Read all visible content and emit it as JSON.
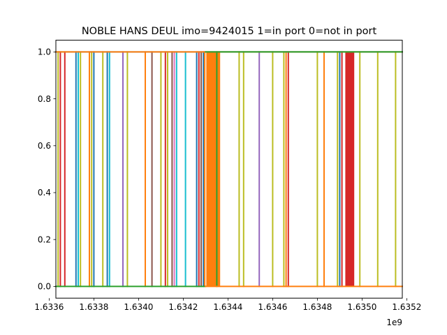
{
  "chart_data": {
    "type": "line",
    "title": "NOBLE HANS DEUL imo=9424015 1=in port 0=not in port",
    "xlabel": "",
    "ylabel": "",
    "x_offset_label": "1e9",
    "x_scale": 1000000000,
    "xlim": [
      1.63363,
      1.63518
    ],
    "ylim": [
      -0.05,
      1.05
    ],
    "x_ticks": [
      1.6336,
      1.6338,
      1.634,
      1.6342,
      1.6344,
      1.6346,
      1.6348,
      1.635,
      1.6352
    ],
    "x_tick_labels": [
      "1.6336",
      "1.6338",
      "1.6340",
      "1.6342",
      "1.6344",
      "1.6346",
      "1.6348",
      "1.6350",
      "1.6352"
    ],
    "y_ticks": [
      0.0,
      0.2,
      0.4,
      0.6,
      0.8,
      1.0
    ],
    "y_tick_labels": [
      "0.0",
      "0.2",
      "0.4",
      "0.6",
      "0.8",
      "1.0"
    ],
    "grid": false,
    "legend": "none",
    "colors": {
      "blue": "#1f77b4",
      "orange": "#ff7f0e",
      "green": "#2ca02c",
      "red": "#d62728",
      "purple": "#9467bd",
      "brown": "#8c564b",
      "pink": "#e377c2",
      "gray": "#7f7f7f",
      "olive": "#bcbd22",
      "cyan": "#17becf"
    },
    "series": [
      {
        "color": "olive",
        "x": [
          1.63364,
          1.63364
        ],
        "y": [
          0,
          1
        ]
      },
      {
        "color": "red",
        "x": [
          1.63365,
          1.63365
        ],
        "y": [
          0,
          1
        ]
      },
      {
        "color": "red",
        "x": [
          1.63367,
          1.63367
        ],
        "y": [
          0,
          1
        ]
      },
      {
        "color": "blue",
        "x": [
          1.63372,
          1.63372
        ],
        "y": [
          0,
          1
        ]
      },
      {
        "color": "cyan",
        "x": [
          1.63373,
          1.63373
        ],
        "y": [
          0,
          1
        ]
      },
      {
        "color": "olive",
        "x": [
          1.63374,
          1.63374
        ],
        "y": [
          0,
          1
        ]
      },
      {
        "color": "orange",
        "x": [
          1.63378,
          1.63378
        ],
        "y": [
          0,
          1
        ]
      },
      {
        "color": "olive",
        "x": [
          1.63379,
          1.63379
        ],
        "y": [
          0,
          1
        ]
      },
      {
        "color": "blue",
        "x": [
          1.6338,
          1.6338
        ],
        "y": [
          0,
          1
        ]
      },
      {
        "color": "olive",
        "x": [
          1.63384,
          1.63384
        ],
        "y": [
          0,
          1
        ]
      },
      {
        "color": "blue",
        "x": [
          1.63386,
          1.63386
        ],
        "y": [
          0,
          1
        ]
      },
      {
        "color": "cyan",
        "x": [
          1.63387,
          1.63387
        ],
        "y": [
          0,
          1
        ]
      },
      {
        "color": "purple",
        "x": [
          1.63393,
          1.63393
        ],
        "y": [
          0,
          1
        ]
      },
      {
        "color": "olive",
        "x": [
          1.63395,
          1.63395
        ],
        "y": [
          0,
          1
        ]
      },
      {
        "color": "orange",
        "x": [
          1.63403,
          1.63403
        ],
        "y": [
          0,
          1
        ]
      },
      {
        "color": "brown",
        "x": [
          1.63406,
          1.63406
        ],
        "y": [
          0,
          1
        ]
      },
      {
        "color": "olive",
        "x": [
          1.6341,
          1.6341
        ],
        "y": [
          0,
          1
        ]
      },
      {
        "color": "red",
        "x": [
          1.63412,
          1.63412
        ],
        "y": [
          0,
          1
        ]
      },
      {
        "color": "olive",
        "x": [
          1.63413,
          1.63413
        ],
        "y": [
          0,
          1
        ]
      },
      {
        "color": "brown",
        "x": [
          1.63415,
          1.63415
        ],
        "y": [
          0,
          1
        ]
      },
      {
        "color": "pink",
        "x": [
          1.63416,
          1.63416
        ],
        "y": [
          0,
          1
        ]
      },
      {
        "color": "cyan",
        "x": [
          1.63417,
          1.63417
        ],
        "y": [
          0,
          1
        ]
      },
      {
        "color": "cyan",
        "x": [
          1.63421,
          1.63421
        ],
        "y": [
          0,
          1
        ]
      },
      {
        "color": "blue",
        "x": [
          1.63426,
          1.63426
        ],
        "y": [
          0,
          1
        ]
      },
      {
        "color": "red",
        "x": [
          1.63427,
          1.63427
        ],
        "y": [
          0,
          1
        ]
      },
      {
        "color": "brown",
        "x": [
          1.63428,
          1.63428
        ],
        "y": [
          0,
          1
        ]
      },
      {
        "color": "blue",
        "x": [
          1.63429,
          1.63429
        ],
        "y": [
          0,
          1
        ]
      },
      {
        "color": "orange",
        "x": [
          1.634296,
          1.634296
        ],
        "y": [
          0,
          1
        ]
      },
      {
        "color": "green",
        "x": [
          1.63435,
          1.63435
        ],
        "y": [
          0,
          1
        ]
      },
      {
        "color": "olive",
        "x": [
          1.63445,
          1.63445
        ],
        "y": [
          0,
          1
        ]
      },
      {
        "color": "olive",
        "x": [
          1.63447,
          1.63447
        ],
        "y": [
          0,
          1
        ]
      },
      {
        "color": "purple",
        "x": [
          1.63454,
          1.63454
        ],
        "y": [
          0,
          1
        ]
      },
      {
        "color": "olive",
        "x": [
          1.6346,
          1.6346
        ],
        "y": [
          0,
          1
        ]
      },
      {
        "color": "olive",
        "x": [
          1.63465,
          1.63465
        ],
        "y": [
          0,
          1
        ]
      },
      {
        "color": "orange",
        "x": [
          1.63466,
          1.63466
        ],
        "y": [
          0,
          1
        ]
      },
      {
        "color": "red",
        "x": [
          1.63467,
          1.63467
        ],
        "y": [
          0,
          1
        ]
      },
      {
        "color": "olive",
        "x": [
          1.6348,
          1.6348
        ],
        "y": [
          0,
          1
        ]
      },
      {
        "color": "orange",
        "x": [
          1.63483,
          1.63483
        ],
        "y": [
          0,
          1
        ]
      },
      {
        "color": "olive",
        "x": [
          1.63489,
          1.63489
        ],
        "y": [
          0,
          1
        ]
      },
      {
        "color": "blue",
        "x": [
          1.6349,
          1.6349
        ],
        "y": [
          0,
          1
        ]
      },
      {
        "color": "red",
        "x": [
          1.63491,
          1.63491
        ],
        "y": [
          0,
          1
        ]
      },
      {
        "color": "olive",
        "x": [
          1.63499,
          1.63499
        ],
        "y": [
          0,
          1
        ]
      },
      {
        "color": "olive",
        "x": [
          1.63507,
          1.63507
        ],
        "y": [
          0,
          1
        ]
      },
      {
        "color": "olive",
        "x": [
          1.63515,
          1.63515
        ],
        "y": [
          0,
          1
        ]
      },
      {
        "color": "green",
        "x": [
          1.63363,
          1.6343
        ],
        "y": [
          0,
          0
        ]
      },
      {
        "color": "orange",
        "x": [
          1.6343,
          1.63518
        ],
        "y": [
          0,
          0
        ]
      },
      {
        "color": "blue",
        "x": [
          1.63363,
          1.63518
        ],
        "y": [
          1,
          1
        ]
      },
      {
        "color": "orange",
        "x": [
          1.63363,
          1.63518
        ],
        "y": [
          1,
          1
        ]
      },
      {
        "color": "green",
        "x": [
          1.6343,
          1.63518
        ],
        "y": [
          1,
          1
        ]
      }
    ],
    "filled_bands": [
      {
        "color": "orange",
        "x": [
          1.634303,
          1.634365
        ],
        "y": [
          0,
          1
        ]
      },
      {
        "color": "red",
        "x": [
          1.634925,
          1.634965
        ],
        "y": [
          0,
          1
        ]
      }
    ]
  }
}
